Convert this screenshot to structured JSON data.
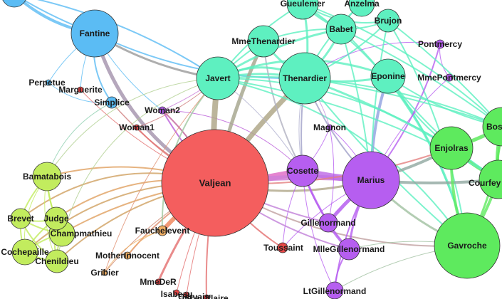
{
  "colors": {
    "green": "#5eea5e",
    "mint": "#5ef0c0",
    "blue": "#5bbcf4",
    "purple": "#b65ef0",
    "red": "#f45e5e",
    "lime": "#c2ec5e",
    "orange": "#f2b064",
    "tiny_red": "#e84848"
  },
  "nodes": [
    {
      "id": "valjean",
      "label": "Valjean",
      "color": "red"
    },
    {
      "id": "marius",
      "label": "Marius",
      "color": "purple"
    },
    {
      "id": "cosette",
      "label": "Cosette",
      "color": "purple"
    },
    {
      "id": "javert",
      "label": "Javert",
      "color": "mint"
    },
    {
      "id": "thenardier",
      "label": "Thenardier",
      "color": "mint"
    },
    {
      "id": "mmethenardier",
      "label": "MmeThenardier",
      "color": "mint"
    },
    {
      "id": "eponine",
      "label": "Eponine",
      "color": "mint"
    },
    {
      "id": "gueulemer",
      "label": "Gueulemer",
      "color": "mint"
    },
    {
      "id": "anzelma",
      "label": "Anzelma",
      "color": "mint"
    },
    {
      "id": "babet",
      "label": "Babet",
      "color": "mint"
    },
    {
      "id": "brujon",
      "label": "Brujon",
      "color": "mint"
    },
    {
      "id": "fantine",
      "label": "Fantine",
      "color": "blue"
    },
    {
      "id": "simplice",
      "label": "Simplice",
      "color": "blue"
    },
    {
      "id": "perpetue",
      "label": "Perpetue",
      "color": "blue"
    },
    {
      "id": "marguerite",
      "label": "Marguerite",
      "color": "tiny_red"
    },
    {
      "id": "woman2",
      "label": "Woman2",
      "color": "purple"
    },
    {
      "id": "woman1",
      "label": "Woman1",
      "color": "tiny_red"
    },
    {
      "id": "magnon",
      "label": "Magnon",
      "color": "purple"
    },
    {
      "id": "pontmercy",
      "label": "Pontmercy",
      "color": "purple"
    },
    {
      "id": "mmepontmercy",
      "label": "MmePontmercy",
      "color": "purple"
    },
    {
      "id": "enjolras",
      "label": "Enjolras",
      "color": "green"
    },
    {
      "id": "bossuet",
      "label": "Bos",
      "color": "green"
    },
    {
      "id": "courfeyrac",
      "label": "Courfey",
      "color": "green"
    },
    {
      "id": "gavroche",
      "label": "Gavroche",
      "color": "green"
    },
    {
      "id": "gillenormand",
      "label": "Gillenormand",
      "color": "purple"
    },
    {
      "id": "mllegillenormand",
      "label": "MlleGillenormand",
      "color": "purple"
    },
    {
      "id": "ltgillenormand",
      "label": "LtGillenormand",
      "color": "purple"
    },
    {
      "id": "toussaint",
      "label": "Toussaint",
      "color": "tiny_red"
    },
    {
      "id": "fauchelevent",
      "label": "Fauchelevent",
      "color": "orange"
    },
    {
      "id": "motherinnocent",
      "label": "MotherInnocent",
      "color": "orange"
    },
    {
      "id": "gribier",
      "label": "Gribier",
      "color": "orange"
    },
    {
      "id": "mmeder",
      "label": "MmeDeR",
      "color": "tiny_red"
    },
    {
      "id": "isabeau",
      "label": "Isabeau",
      "color": "tiny_red"
    },
    {
      "id": "gervais",
      "label": "Gervais",
      "color": "tiny_red"
    },
    {
      "id": "scaufflaire",
      "label": "Scaufflaire",
      "color": "tiny_red"
    },
    {
      "id": "bamatabois",
      "label": "Bamatabois",
      "color": "lime"
    },
    {
      "id": "brevet",
      "label": "Brevet",
      "color": "lime"
    },
    {
      "id": "judge",
      "label": "Judge",
      "color": "lime"
    },
    {
      "id": "champmathieu",
      "label": "Champmathieu",
      "color": "lime"
    },
    {
      "id": "cochepaille",
      "label": "Cochepaille",
      "color": "lime"
    },
    {
      "id": "chenildieu",
      "label": "Chenildieu",
      "color": "lime"
    },
    {
      "id": "topleft",
      "label": "",
      "color": "blue"
    }
  ]
}
